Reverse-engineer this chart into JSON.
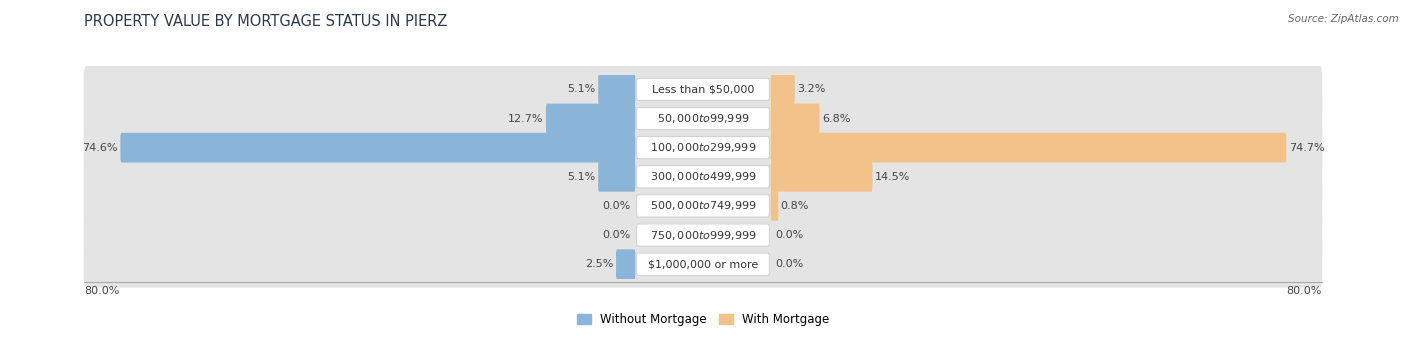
{
  "title": "PROPERTY VALUE BY MORTGAGE STATUS IN PIERZ",
  "source": "Source: ZipAtlas.com",
  "categories": [
    "Less than $50,000",
    "$50,000 to $99,999",
    "$100,000 to $299,999",
    "$300,000 to $499,999",
    "$500,000 to $749,999",
    "$750,000 to $999,999",
    "$1,000,000 or more"
  ],
  "without_mortgage": [
    5.1,
    12.7,
    74.6,
    5.1,
    0.0,
    0.0,
    2.5
  ],
  "with_mortgage": [
    3.2,
    6.8,
    74.7,
    14.5,
    0.8,
    0.0,
    0.0
  ],
  "max_val": 80.0,
  "blue_color": "#8ab4d8",
  "orange_color": "#f2c28a",
  "bg_row_color": "#e4e4e4",
  "title_color": "#2d3a4a",
  "label_fontsize": 8.0,
  "title_fontsize": 10.5,
  "axis_label_fontsize": 8.0,
  "legend_fontsize": 8.5,
  "bottom_left_label": "80.0%",
  "bottom_right_label": "80.0%"
}
